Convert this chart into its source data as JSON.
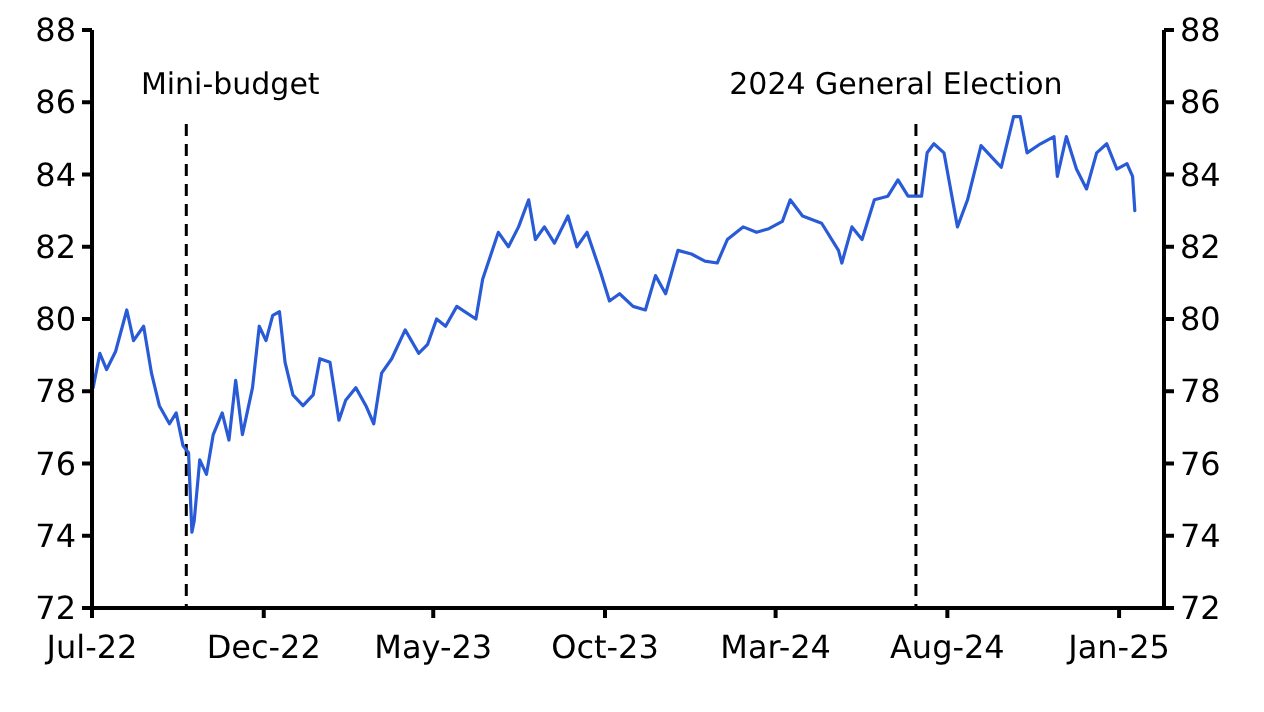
{
  "chart_data": {
    "type": "line",
    "x": [
      "2022-07-02",
      "2022-07-08",
      "2022-07-14",
      "2022-07-22",
      "2022-08-01",
      "2022-08-07",
      "2022-08-16",
      "2022-08-23",
      "2022-08-30",
      "2022-09-08",
      "2022-09-14",
      "2022-09-20",
      "2022-09-25",
      "2022-09-28",
      "2022-09-30",
      "2022-10-05",
      "2022-10-11",
      "2022-10-17",
      "2022-10-25",
      "2022-10-31",
      "2022-11-06",
      "2022-11-12",
      "2022-11-21",
      "2022-11-27",
      "2022-12-03",
      "2022-12-09",
      "2022-12-15",
      "2022-12-20",
      "2022-12-27",
      "2023-01-05",
      "2023-01-14",
      "2023-01-20",
      "2023-01-29",
      "2023-02-06",
      "2023-02-12",
      "2023-02-21",
      "2023-03-02",
      "2023-03-09",
      "2023-03-16",
      "2023-03-25",
      "2023-04-06",
      "2023-04-18",
      "2023-04-26",
      "2023-05-04",
      "2023-05-12",
      "2023-05-22",
      "2023-06-08",
      "2023-06-14",
      "2023-06-28",
      "2023-07-07",
      "2023-07-16",
      "2023-07-25",
      "2023-07-31",
      "2023-08-08",
      "2023-08-17",
      "2023-08-29",
      "2023-09-06",
      "2023-09-15",
      "2023-09-27",
      "2023-10-05",
      "2023-10-14",
      "2023-10-26",
      "2023-11-06",
      "2023-11-15",
      "2023-11-24",
      "2023-12-05",
      "2023-12-17",
      "2023-12-29",
      "2024-01-09",
      "2024-01-18",
      "2024-02-01",
      "2024-02-13",
      "2024-02-24",
      "2024-03-07",
      "2024-03-14",
      "2024-03-25",
      "2024-04-11",
      "2024-04-26",
      "2024-04-29",
      "2024-05-08",
      "2024-05-17",
      "2024-05-28",
      "2024-06-09",
      "2024-06-18",
      "2024-06-27",
      "2024-07-09",
      "2024-07-14",
      "2024-07-20",
      "2024-07-29",
      "2024-08-10",
      "2024-08-19",
      "2024-08-31",
      "2024-09-12",
      "2024-09-18",
      "2024-09-29",
      "2024-10-05",
      "2024-10-11",
      "2024-10-23",
      "2024-11-04",
      "2024-11-07",
      "2024-11-15",
      "2024-11-24",
      "2024-12-03",
      "2024-12-12",
      "2024-12-21",
      "2024-12-30",
      "2025-01-08",
      "2025-01-13",
      "2025-01-15"
    ],
    "series": [
      {
        "color": "#2a5bd7",
        "values": [
          78.1,
          79.05,
          78.6,
          79.1,
          80.25,
          79.4,
          79.8,
          78.5,
          77.6,
          77.1,
          77.4,
          76.5,
          76.3,
          74.1,
          74.4,
          76.1,
          75.7,
          76.8,
          77.4,
          76.65,
          78.3,
          76.8,
          78.1,
          79.8,
          79.4,
          80.1,
          80.2,
          78.8,
          77.9,
          77.6,
          77.9,
          78.9,
          78.8,
          77.2,
          77.75,
          78.1,
          77.6,
          77.1,
          78.5,
          78.9,
          79.7,
          79.05,
          79.3,
          80.0,
          79.8,
          80.35,
          80.0,
          81.1,
          82.4,
          82.0,
          82.55,
          83.3,
          82.2,
          82.55,
          82.1,
          82.85,
          82.0,
          82.4,
          81.3,
          80.5,
          80.7,
          80.35,
          80.25,
          81.2,
          80.7,
          81.9,
          81.8,
          81.6,
          81.55,
          82.2,
          82.55,
          82.4,
          82.5,
          82.7,
          83.3,
          82.85,
          82.65,
          81.9,
          81.55,
          82.55,
          82.2,
          83.3,
          83.4,
          83.85,
          83.4,
          83.4,
          84.6,
          84.85,
          84.6,
          82.55,
          83.3,
          84.8,
          84.4,
          84.2,
          85.6,
          85.6,
          84.6,
          84.85,
          85.05,
          83.95,
          85.05,
          84.15,
          83.6,
          84.6,
          84.85,
          84.15,
          84.3,
          83.95,
          83.0
        ]
      }
    ],
    "xlim": [
      "2022-07-01",
      "2025-02-10"
    ],
    "xticks": [
      {
        "value": "2022-07-01",
        "label": "Jul-22"
      },
      {
        "value": "2022-12-01",
        "label": "Dec-22"
      },
      {
        "value": "2023-05-01",
        "label": "May-23"
      },
      {
        "value": "2023-10-01",
        "label": "Oct-23"
      },
      {
        "value": "2024-03-01",
        "label": "Mar-24"
      },
      {
        "value": "2024-08-01",
        "label": "Aug-24"
      },
      {
        "value": "2025-01-01",
        "label": "Jan-25"
      }
    ],
    "ylim": [
      72,
      88
    ],
    "yticks": [
      72,
      74,
      76,
      78,
      80,
      82,
      84,
      86,
      88
    ],
    "y2lim": [
      72,
      88
    ],
    "y2ticks": [
      72,
      74,
      76,
      78,
      80,
      82,
      84,
      86,
      88
    ],
    "ref_lines": [
      {
        "axis": "x",
        "value": "2022-09-23",
        "label": "Mini-budget",
        "color": "#000000",
        "line_style": "dashed"
      },
      {
        "axis": "x",
        "value": "2024-07-04",
        "label": "2024 General Election",
        "color": "#000000",
        "line_style": "dashed"
      }
    ],
    "grid": false,
    "marker": "none",
    "line_style": "solid"
  }
}
